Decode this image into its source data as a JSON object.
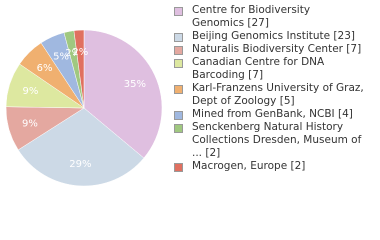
{
  "chart_data": {
    "type": "pie",
    "series": [
      {
        "name": "Centre for Biodiversity Genomics [27]",
        "color": "#dfbfe0",
        "values": [
          35
        ],
        "value_labels": [
          "35%"
        ]
      },
      {
        "name": "Beijing Genomics Institute [23]",
        "color": "#ccd9e6",
        "values": [
          29
        ],
        "value_labels": [
          "29%"
        ]
      },
      {
        "name": "Naturalis Biodiversity Center [7]",
        "color": "#e4a8a0",
        "values": [
          9
        ],
        "value_labels": [
          "9%"
        ]
      },
      {
        "name": "Canadian Centre for DNA Barcoding [7]",
        "color": "#dde8a0",
        "values": [
          9
        ],
        "value_labels": [
          "9%"
        ]
      },
      {
        "name": "Karl-Franzens University of Graz, Dept of Zoology [5]",
        "color": "#f0b070",
        "values": [
          6
        ],
        "value_labels": [
          "6%"
        ]
      },
      {
        "name": "Mined from GenBank, NCBI [4]",
        "color": "#a0b8e0",
        "values": [
          5
        ],
        "value_labels": [
          "5%"
        ]
      },
      {
        "name": "Senckenberg Natural History Collections Dresden, Museum of ... [2]",
        "color": "#a0c880",
        "values": [
          2
        ],
        "value_labels": [
          "2%"
        ]
      },
      {
        "name": "Macrogen, Europe [2]",
        "color": "#e07060",
        "values": [
          2
        ],
        "value_labels": [
          "2%"
        ]
      }
    ]
  }
}
